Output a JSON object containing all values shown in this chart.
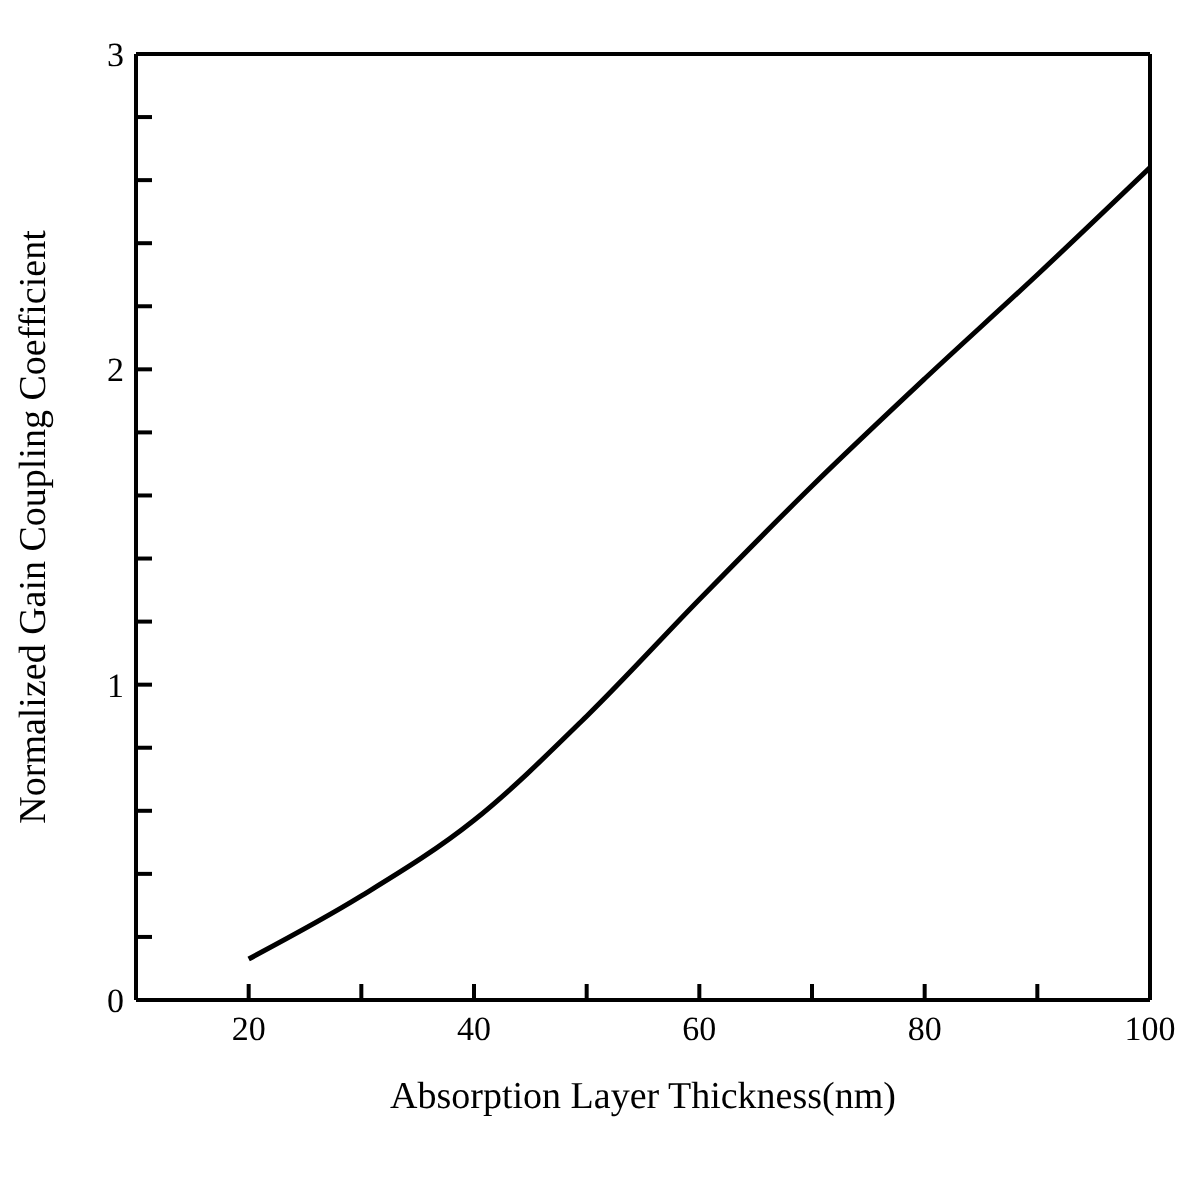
{
  "chart_data": {
    "type": "line",
    "xlabel": "Absorption Layer Thickness(nm)",
    "ylabel": "Normalized Gain Coupling Coefficient",
    "x": [
      20,
      30,
      40,
      50,
      60,
      70,
      80,
      90,
      100
    ],
    "series": [
      {
        "color": "#000000",
        "values": [
          0.13,
          0.33,
          0.57,
          0.9,
          1.27,
          1.63,
          1.97,
          2.3,
          2.64
        ]
      }
    ],
    "xlim": [
      10,
      100
    ],
    "ylim": [
      0,
      3
    ],
    "xticks": [
      20,
      {
        "value": 30,
        "label": null
      },
      40,
      {
        "value": 50,
        "label": null
      },
      60,
      {
        "value": 70,
        "label": null
      },
      80,
      {
        "value": 90,
        "label": null
      },
      100
    ],
    "yticks": [
      0,
      {
        "value": 0.2,
        "label": null
      },
      {
        "value": 0.4,
        "label": null
      },
      {
        "value": 0.6,
        "label": null
      },
      {
        "value": 0.8,
        "label": null
      },
      1,
      {
        "value": 1.2,
        "label": null
      },
      {
        "value": 1.4,
        "label": null
      },
      {
        "value": 1.6,
        "label": null
      },
      {
        "value": 1.8,
        "label": null
      },
      2,
      {
        "value": 2.2,
        "label": null
      },
      {
        "value": 2.4,
        "label": null
      },
      {
        "value": 2.6,
        "label": null
      },
      {
        "value": 2.8,
        "label": null
      },
      3
    ],
    "grid": false,
    "legend": false,
    "marker": "none",
    "line_style": "solid"
  }
}
